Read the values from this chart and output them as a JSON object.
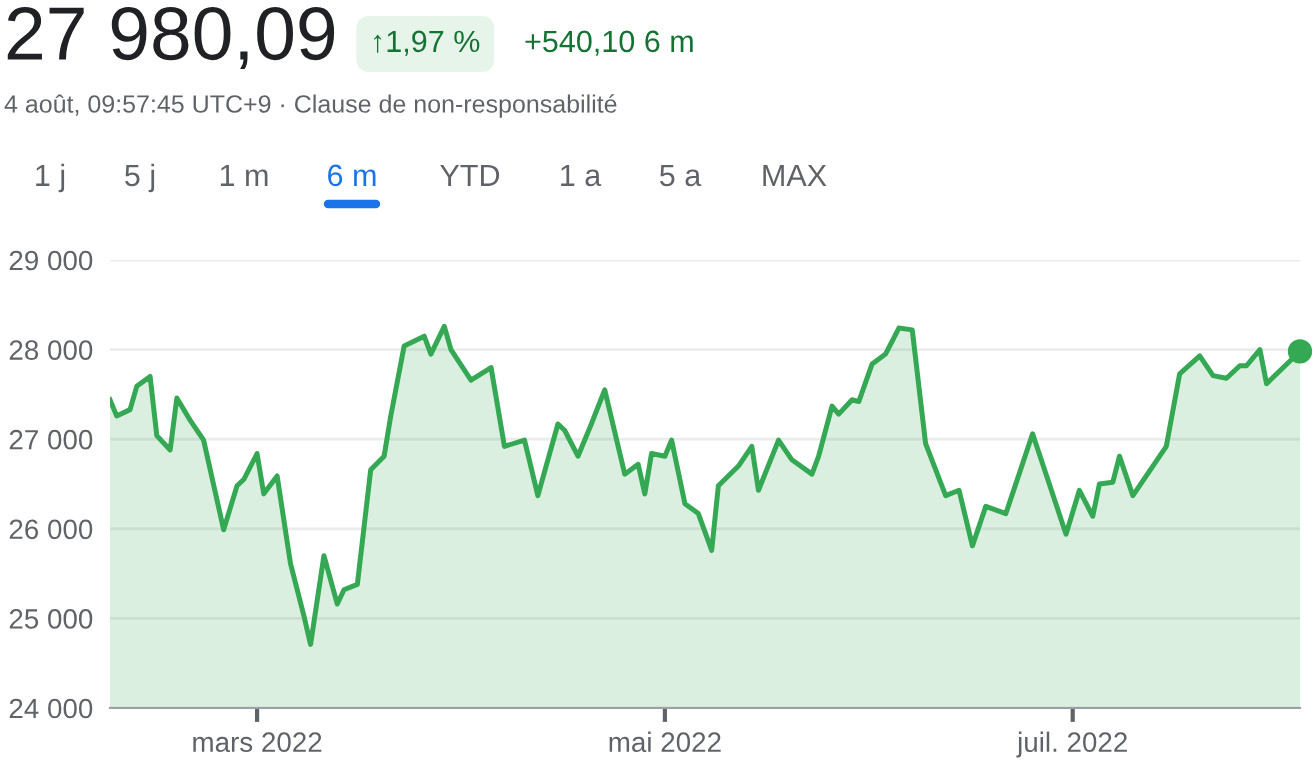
{
  "chart_data": {
    "type": "area",
    "title": "27 980,09",
    "annotations": [
      "↑1,97 %",
      "+540,10 6 m",
      "4 août, 09:57:45 UTC+9 · Clause de non-responsabilité",
      "1 j",
      "5 j",
      "1 m",
      "6 m",
      "YTD",
      "1 a",
      "5 a",
      "MAX"
    ],
    "series": [
      {
        "color": "#34a853",
        "x": [
          "2022-02-07",
          "2022-02-08",
          "2022-02-10",
          "2022-02-11",
          "2022-02-13",
          "2022-02-14",
          "2022-02-16",
          "2022-02-17",
          "2022-02-19",
          "2022-02-21",
          "2022-02-24",
          "2022-02-26",
          "2022-02-27",
          "2022-03-01",
          "2022-03-02",
          "2022-03-04",
          "2022-03-06",
          "2022-03-08",
          "2022-03-09",
          "2022-03-11",
          "2022-03-13",
          "2022-03-14",
          "2022-03-16",
          "2022-03-18",
          "2022-03-20",
          "2022-03-21",
          "2022-03-23",
          "2022-03-26",
          "2022-03-27",
          "2022-03-29",
          "2022-03-30",
          "2022-04-02",
          "2022-04-05",
          "2022-04-07",
          "2022-04-10",
          "2022-04-12",
          "2022-04-15",
          "2022-04-16",
          "2022-04-18",
          "2022-04-20",
          "2022-04-22",
          "2022-04-25",
          "2022-04-27",
          "2022-04-28",
          "2022-04-29",
          "2022-05-01",
          "2022-05-02",
          "2022-05-04",
          "2022-05-06",
          "2022-05-08",
          "2022-05-09",
          "2022-05-12",
          "2022-05-14",
          "2022-05-15",
          "2022-05-18",
          "2022-05-20",
          "2022-05-23",
          "2022-05-24",
          "2022-05-26",
          "2022-05-27",
          "2022-05-29",
          "2022-05-30",
          "2022-06-01",
          "2022-06-03",
          "2022-06-05",
          "2022-06-07",
          "2022-06-09",
          "2022-06-12",
          "2022-06-14",
          "2022-06-16",
          "2022-06-18",
          "2022-06-21",
          "2022-06-25",
          "2022-06-30",
          "2022-07-02",
          "2022-07-04",
          "2022-07-05",
          "2022-07-07",
          "2022-07-08",
          "2022-07-10",
          "2022-07-15",
          "2022-07-17",
          "2022-07-20",
          "2022-07-22",
          "2022-07-24",
          "2022-07-26",
          "2022-07-27",
          "2022-07-29",
          "2022-07-30",
          "2022-08-04"
        ],
        "values": [
          27440,
          27260,
          27330,
          27590,
          27700,
          27040,
          26880,
          27460,
          27210,
          26990,
          25990,
          26480,
          26550,
          26840,
          26390,
          26590,
          25610,
          25030,
          24710,
          25700,
          25160,
          25320,
          25380,
          26660,
          26810,
          27260,
          28040,
          28150,
          27950,
          28260,
          28000,
          27660,
          27800,
          26920,
          26990,
          26370,
          27170,
          27100,
          26810,
          27170,
          27550,
          26610,
          26720,
          26390,
          26840,
          26810,
          26990,
          26280,
          26170,
          25760,
          26480,
          26700,
          26920,
          26430,
          26990,
          26770,
          26610,
          26810,
          27370,
          27280,
          27440,
          27420,
          27840,
          27950,
          28240,
          28220,
          26950,
          26370,
          26430,
          25810,
          26250,
          26170,
          27060,
          25940,
          26430,
          26140,
          26500,
          26520,
          26810,
          26370,
          26920,
          27730,
          27930,
          27710,
          27680,
          27820,
          27820,
          28000,
          27620,
          27980
        ]
      },
      {
        "type": "scatter",
        "color": "#34a853",
        "x": [
          "2022-08-04"
        ],
        "values": [
          27980
        ],
        "marker": "circle"
      }
    ],
    "xlim": [
      "2022-02-07",
      "2022-08-04"
    ],
    "xticks": [
      {
        "value": "2022-03-01",
        "label": "mars 2022"
      },
      {
        "value": "2022-05-01",
        "label": "mai 2022"
      },
      {
        "value": "2022-07-01",
        "label": "juil. 2022"
      }
    ],
    "ylim": [
      24000,
      29000
    ],
    "yticks": [
      {
        "value": 24000,
        "label": "24 000"
      },
      {
        "value": 25000,
        "label": "25 000"
      },
      {
        "value": 26000,
        "label": "26 000"
      },
      {
        "value": 27000,
        "label": "27 000"
      },
      {
        "value": 28000,
        "label": "28 000"
      },
      {
        "value": 29000,
        "label": "29 000"
      }
    ],
    "grid": "y",
    "legend": false
  }
}
